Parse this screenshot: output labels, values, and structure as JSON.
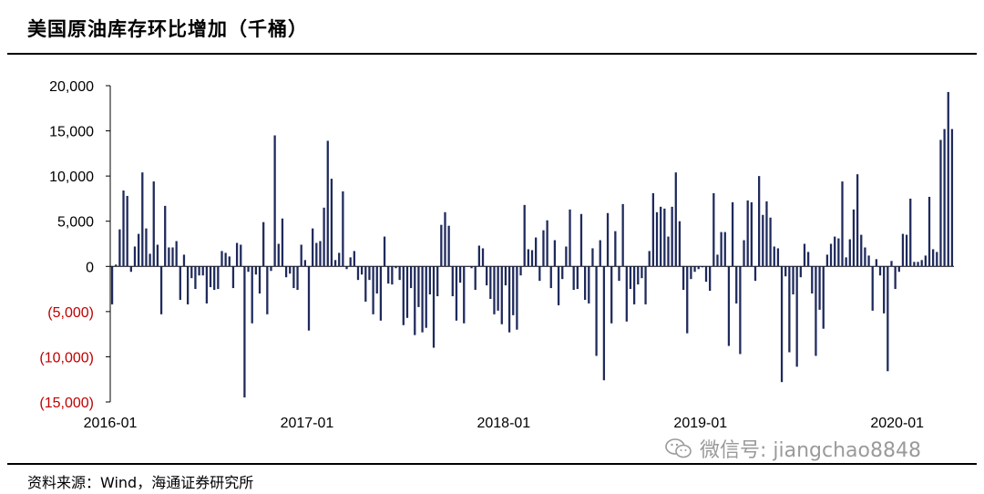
{
  "title": "美国原油库存环比增加（千桶）",
  "source": "资料来源：Wind，海通证券研究所",
  "watermark": "微信号: jiangchao8848",
  "colors": {
    "bar": "#1f2a5c",
    "negative_label": "#c00000",
    "axis": "#000000"
  },
  "chart_data": {
    "type": "bar",
    "ylim": [
      -15000,
      20000
    ],
    "yticks": [
      {
        "value": 20000,
        "label": "20,000",
        "negative": false
      },
      {
        "value": 15000,
        "label": "15,000",
        "negative": false
      },
      {
        "value": 10000,
        "label": "10,000",
        "negative": false
      },
      {
        "value": 5000,
        "label": "5,000",
        "negative": false
      },
      {
        "value": 0,
        "label": "0",
        "negative": false
      },
      {
        "value": -5000,
        "label": "(5,000)",
        "negative": true
      },
      {
        "value": -10000,
        "label": "(10,000)",
        "negative": true
      },
      {
        "value": -15000,
        "label": "(15,000)",
        "negative": true
      }
    ],
    "xticks": [
      {
        "index": 0,
        "label": "2016-01"
      },
      {
        "index": 52,
        "label": "2017-01"
      },
      {
        "index": 104,
        "label": "2018-01"
      },
      {
        "index": 156,
        "label": "2019-01"
      },
      {
        "index": 208,
        "label": "2020-01"
      }
    ],
    "grid": false,
    "legend": "none",
    "values": [
      -4200,
      200,
      4100,
      8400,
      7800,
      -600,
      2200,
      3600,
      10400,
      4200,
      1400,
      9400,
      2400,
      -5300,
      6700,
      2100,
      2100,
      2800,
      -3700,
      1300,
      -4200,
      -1300,
      -2500,
      -1000,
      -1000,
      -4100,
      -2300,
      -2600,
      -2500,
      1700,
      1500,
      1100,
      -2400,
      2600,
      2400,
      -14500,
      -600,
      -6300,
      -900,
      -3000,
      4900,
      -5300,
      -500,
      14500,
      2500,
      5300,
      -1200,
      -800,
      -2400,
      -2600,
      2400,
      700,
      -7100,
      4200,
      2600,
      2800,
      6500,
      13900,
      9700,
      700,
      1500,
      8300,
      -300,
      1000,
      1700,
      -1500,
      -900,
      -3900,
      -1500,
      -5300,
      -3000,
      -6000,
      3300,
      -1900,
      -2000,
      -200,
      -1500,
      -6500,
      -5700,
      -2400,
      -7600,
      -4500,
      -7300,
      -6800,
      -3100,
      -9000,
      -3300,
      4600,
      6000,
      4500,
      -3300,
      -6000,
      -1800,
      -6300,
      0,
      -200,
      -2600,
      2300,
      2000,
      -2100,
      -3600,
      -5300,
      -4900,
      -6400,
      -2100,
      -7300,
      -5400,
      -7000,
      -1000,
      6800,
      1900,
      1800,
      3200,
      -1600,
      4000,
      5100,
      -2400,
      2900,
      -4300,
      -1400,
      2200,
      6300,
      -2600,
      -2500,
      5800,
      -3700,
      -4100,
      2000,
      -9900,
      2900,
      -12600,
      5900,
      -6300,
      3900,
      -1600,
      6900,
      -6100,
      -2500,
      -4200,
      -2000,
      -1300,
      -4200,
      1700,
      8100,
      6000,
      6600,
      6400,
      3300,
      6600,
      10400,
      5000,
      -2600,
      -7400,
      -1400,
      -600,
      -300,
      -100,
      -1700,
      -2700,
      8100,
      1300,
      3800,
      3800,
      -8800,
      7100,
      -4100,
      -9700,
      2900,
      7300,
      7100,
      -1600,
      10000,
      5700,
      7200,
      5400,
      2200,
      2000,
      -12800,
      -1100,
      -9500,
      -3100,
      -11100,
      -1200,
      2500,
      1600,
      -3000,
      -9900,
      -4800,
      -6900,
      1300,
      2500,
      3300,
      3100,
      9400,
      1000,
      3000,
      6300,
      10200,
      3500,
      2100,
      1200,
      -4900,
      800,
      -1000,
      -5200,
      -11600,
      600,
      -2500,
      -600,
      3600,
      3500,
      7500,
      500,
      500,
      700,
      1200,
      7700,
      1900,
      1600,
      14000,
      15200,
      19300,
      15200
    ]
  }
}
